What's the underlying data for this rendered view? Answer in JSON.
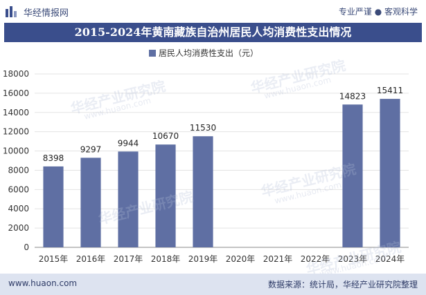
{
  "header": {
    "brand": "华经情报网",
    "slogan": "专业严谨 ● 客观科学"
  },
  "watermark": {
    "text": "华经产业研究院",
    "url": "www.huaon.com"
  },
  "footer": {
    "website": "www.huaon.com",
    "source": "数据来源：统计局，华经产业研究院整理"
  },
  "colors": {
    "bar": "#5f6fa3",
    "title_bg": "#3a4e8c",
    "footer_bg": "#dde3f0"
  },
  "chart_data": {
    "type": "bar",
    "title": "2015-2024年黄南藏族自治州居民人均消费性支出情况",
    "legend": "居民人均消费性支出（元）",
    "categories": [
      "2015年",
      "2016年",
      "2017年",
      "2018年",
      "2019年",
      "2020年",
      "2021年",
      "2022年",
      "2023年",
      "2024年"
    ],
    "values": [
      8398,
      9297,
      9944,
      10670,
      11530,
      null,
      null,
      null,
      14823,
      15411
    ],
    "ylim": [
      0,
      18000
    ],
    "yticks": [
      0,
      2000,
      4000,
      6000,
      8000,
      10000,
      12000,
      14000,
      16000,
      18000
    ],
    "xlabel": "",
    "ylabel": ""
  }
}
